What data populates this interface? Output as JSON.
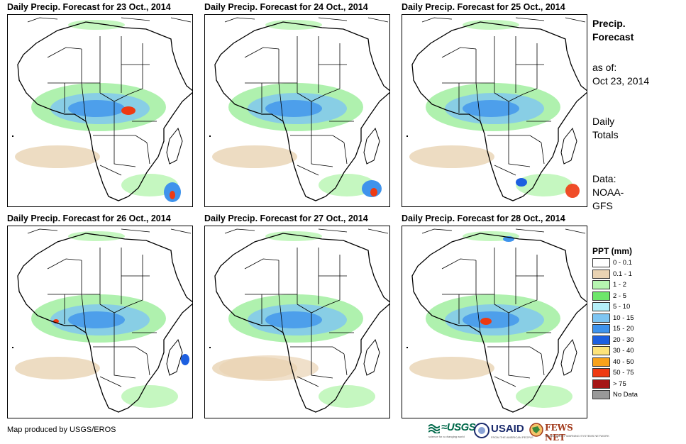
{
  "panels": [
    {
      "title": "Daily Precip. Forecast for 23 Oct., 2014"
    },
    {
      "title": "Daily Precip. Forecast for 24 Oct., 2014"
    },
    {
      "title": "Daily Precip. Forecast for 25 Oct., 2014"
    },
    {
      "title": "Daily Precip. Forecast for 26 Oct., 2014"
    },
    {
      "title": "Daily Precip. Forecast for 27 Oct., 2014"
    },
    {
      "title": "Daily Precip. Forecast for 28 Oct., 2014"
    }
  ],
  "sidebar": {
    "title_line1": "Precip.",
    "title_line2": "Forecast",
    "asof_label": "as of:",
    "asof_date": "Oct 23, 2014",
    "totals_line1": "Daily",
    "totals_line2": "Totals",
    "source_line1": "Data:",
    "source_line2": "NOAA-",
    "source_line3": "GFS"
  },
  "legend": {
    "title": "PPT (mm)",
    "items": [
      {
        "label": "0 - 0.1",
        "color": "#ffffff"
      },
      {
        "label": "0.1 - 1",
        "color": "#e9d3b3"
      },
      {
        "label": "1 - 2",
        "color": "#b6f5b0"
      },
      {
        "label": "2 - 5",
        "color": "#6ee66b"
      },
      {
        "label": "5 - 10",
        "color": "#b4eef8"
      },
      {
        "label": "10 - 15",
        "color": "#7ec5f2"
      },
      {
        "label": "15 - 20",
        "color": "#3f93ec"
      },
      {
        "label": "20 - 30",
        "color": "#1d5fe0"
      },
      {
        "label": "30 - 40",
        "color": "#fde37a"
      },
      {
        "label": "40 - 50",
        "color": "#f8a21c"
      },
      {
        "label": "50 - 75",
        "color": "#ee3a12"
      },
      {
        "label": "> 75",
        "color": "#a51616"
      },
      {
        "label": "No Data",
        "color": "#999999"
      }
    ]
  },
  "credit": "Map produced by USGS/EROS",
  "logos": {
    "usgs": "≈USGS",
    "usgs_tagline": "science for a changing world",
    "usaid": "USAID",
    "usaid_tagline": "FROM THE AMERICAN PEOPLE",
    "fews": "FEWS NET",
    "fews_tagline": "FAMINE EARLY WARNING SYSTEMS NETWORK"
  }
}
